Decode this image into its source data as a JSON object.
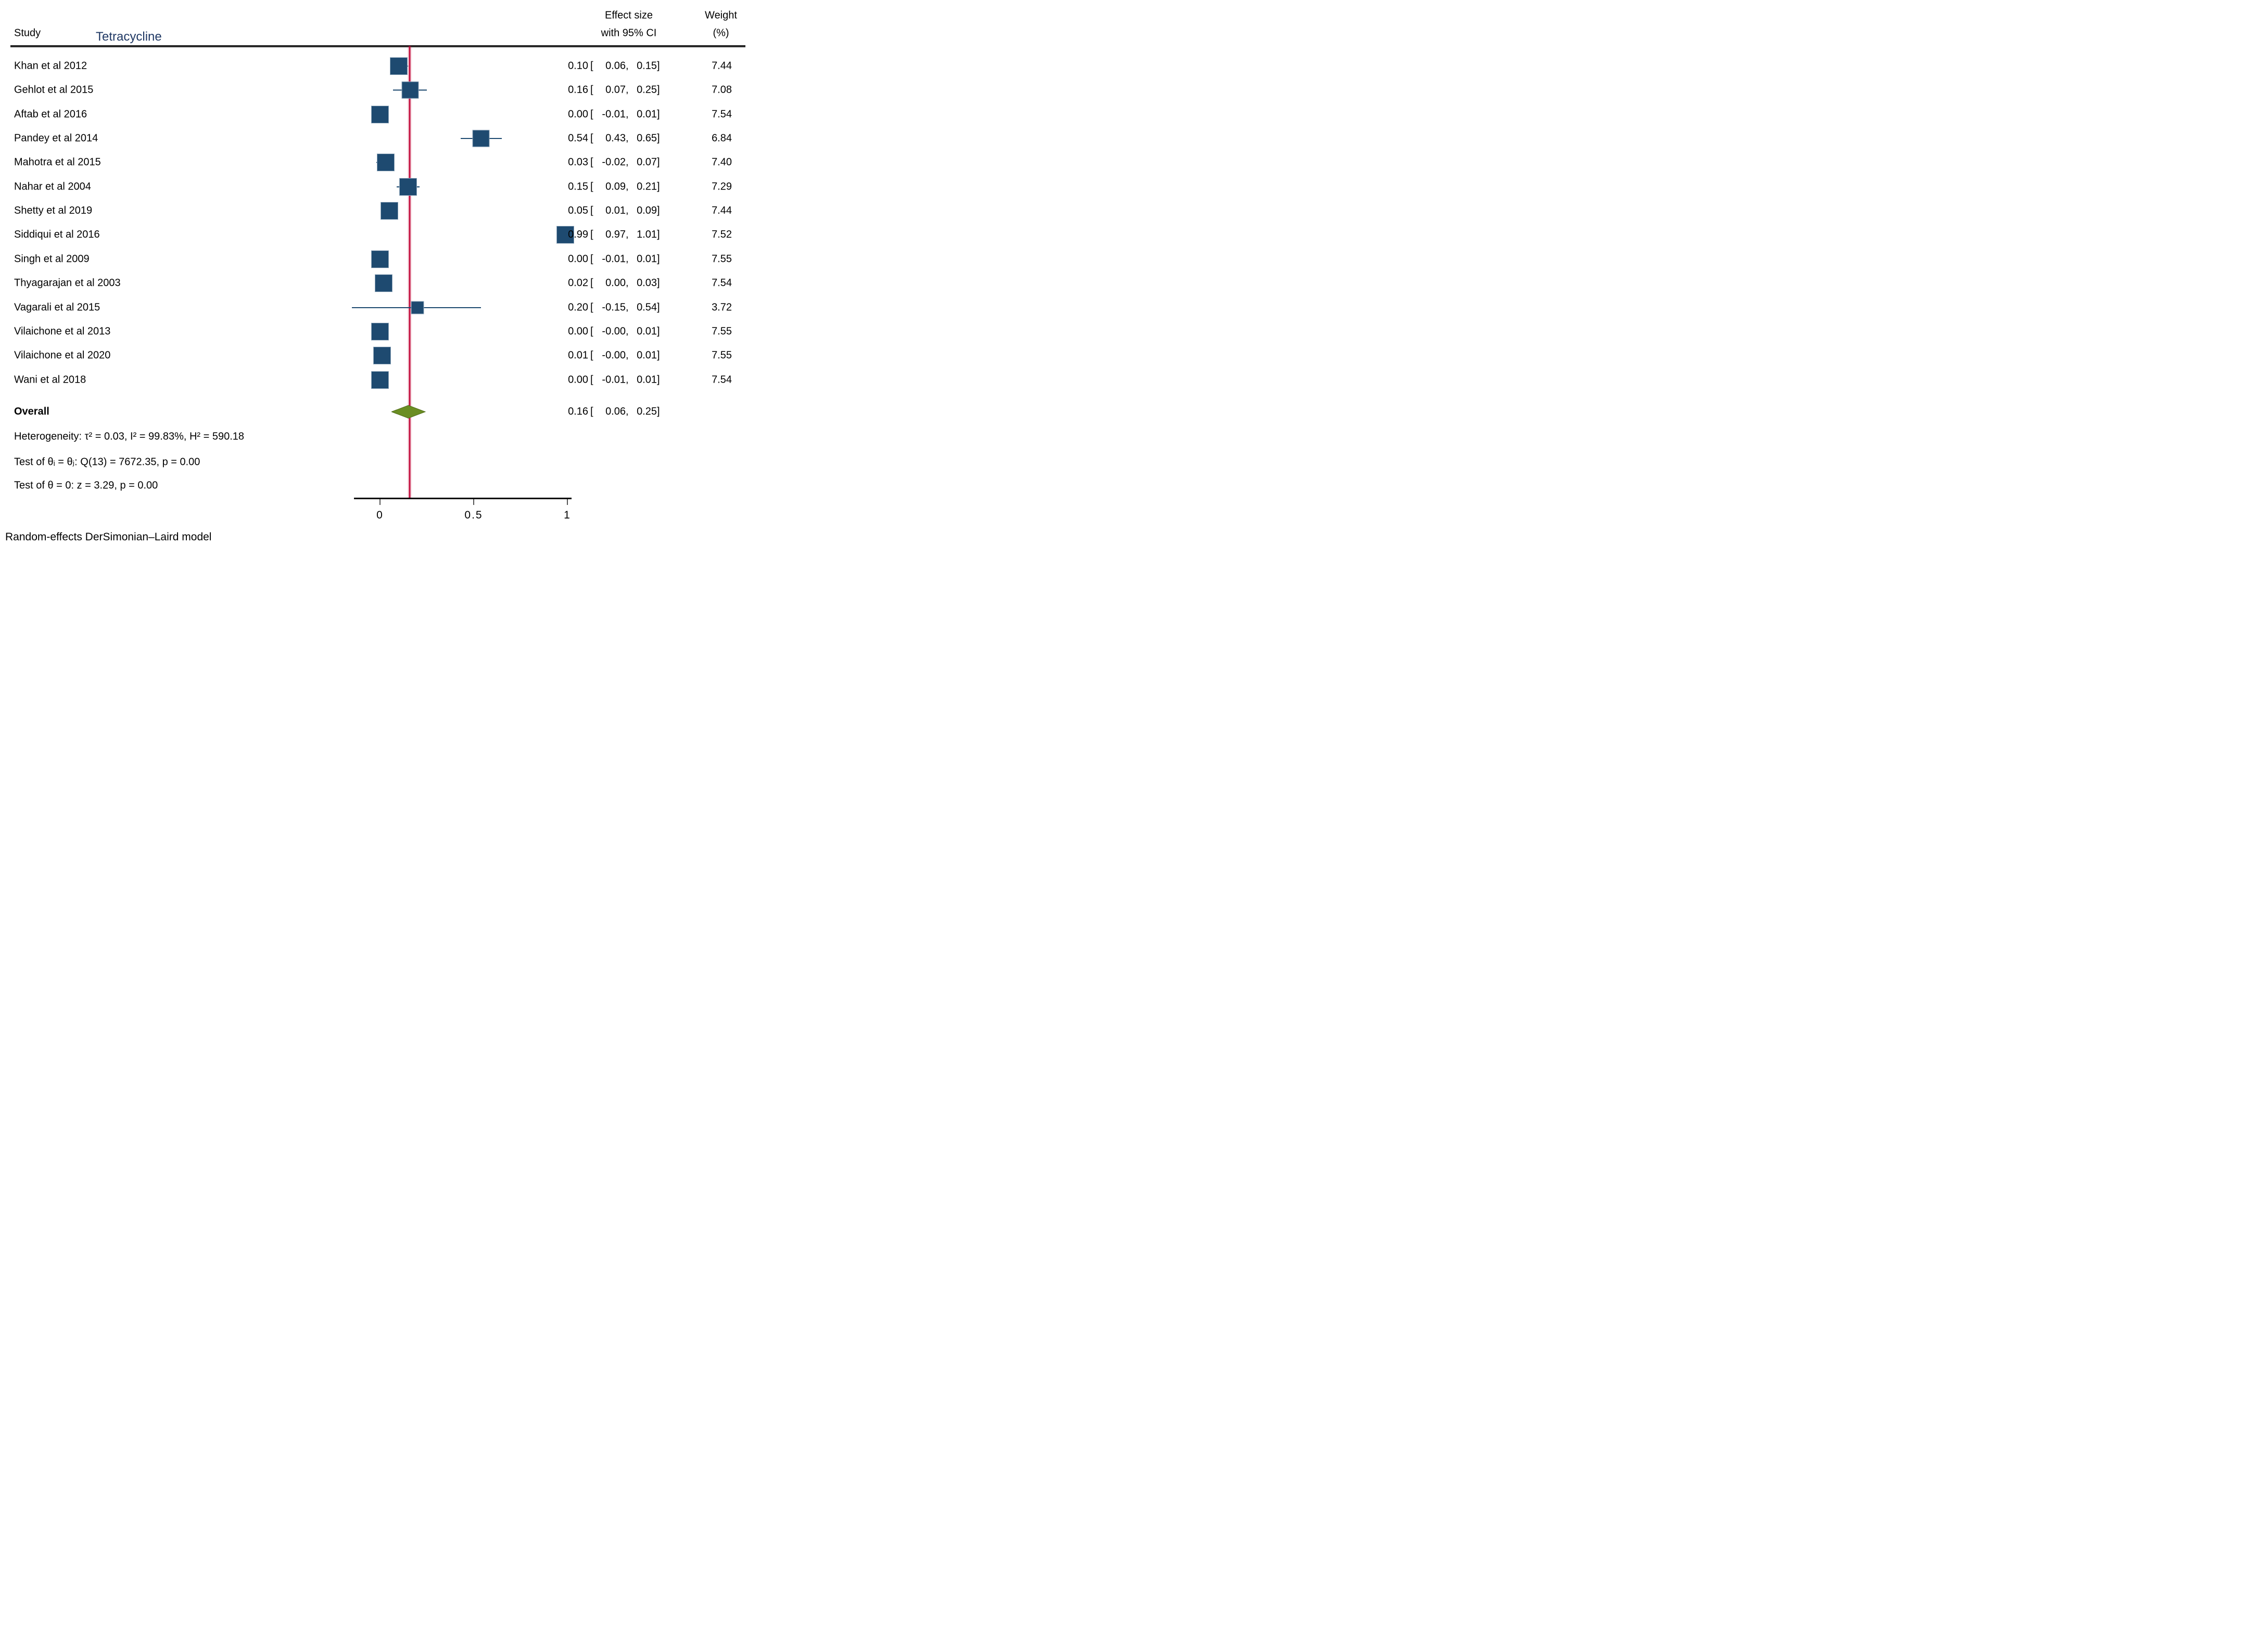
{
  "chart_data": {
    "type": "forest",
    "study_col_header": "Study",
    "subgroup_label": "Tetracycline",
    "effect_col_header_line1": "Effect size",
    "effect_col_header_line2": "with 95% CI",
    "weight_col_header_line1": "Weight",
    "weight_col_header_line2": "(%)",
    "xticks": [
      "0",
      "0.5",
      "1"
    ],
    "xlabel": "",
    "axis_values": [
      0,
      0.5,
      1
    ],
    "vline_value": 0.158,
    "legend_position": "none",
    "grid": false,
    "studies": [
      {
        "label": "Khan et al 2012",
        "es": 0.1,
        "lo": 0.06,
        "hi": 0.15,
        "weight": 7.44,
        "es_t": "0.10",
        "lo_t": "0.06",
        "hi_t": "0.15",
        "w_t": "7.44"
      },
      {
        "label": "Gehlot et al 2015",
        "es": 0.16,
        "lo": 0.07,
        "hi": 0.25,
        "weight": 7.08,
        "es_t": "0.16",
        "lo_t": "0.07",
        "hi_t": "0.25",
        "w_t": "7.08"
      },
      {
        "label": "Aftab et al 2016",
        "es": 0.0,
        "lo": -0.01,
        "hi": 0.01,
        "weight": 7.54,
        "es_t": "0.00",
        "lo_t": "-0.01",
        "hi_t": "0.01",
        "w_t": "7.54"
      },
      {
        "label": "Pandey et al 2014",
        "es": 0.54,
        "lo": 0.43,
        "hi": 0.65,
        "weight": 6.84,
        "es_t": "0.54",
        "lo_t": "0.43",
        "hi_t": "0.65",
        "w_t": "6.84"
      },
      {
        "label": "Mahotra et al 2015",
        "es": 0.03,
        "lo": -0.02,
        "hi": 0.07,
        "weight": 7.4,
        "es_t": "0.03",
        "lo_t": "-0.02",
        "hi_t": "0.07",
        "w_t": "7.40"
      },
      {
        "label": "Nahar et al 2004",
        "es": 0.15,
        "lo": 0.09,
        "hi": 0.21,
        "weight": 7.29,
        "es_t": "0.15",
        "lo_t": "0.09",
        "hi_t": "0.21",
        "w_t": "7.29"
      },
      {
        "label": "Shetty et al 2019",
        "es": 0.05,
        "lo": 0.01,
        "hi": 0.09,
        "weight": 7.44,
        "es_t": "0.05",
        "lo_t": "0.01",
        "hi_t": "0.09",
        "w_t": "7.44"
      },
      {
        "label": "Siddiqui et al 2016",
        "es": 0.99,
        "lo": 0.97,
        "hi": 1.01,
        "weight": 7.52,
        "es_t": "0.99",
        "lo_t": "0.97",
        "hi_t": "1.01",
        "w_t": "7.52"
      },
      {
        "label": "Singh et al 2009",
        "es": 0.0,
        "lo": -0.01,
        "hi": 0.01,
        "weight": 7.55,
        "es_t": "0.00",
        "lo_t": "-0.01",
        "hi_t": "0.01",
        "w_t": "7.55"
      },
      {
        "label": "Thyagarajan et al 2003",
        "es": 0.02,
        "lo": 0.0,
        "hi": 0.03,
        "weight": 7.54,
        "es_t": "0.02",
        "lo_t": "0.00",
        "hi_t": "0.03",
        "w_t": "7.54"
      },
      {
        "label": "Vagarali et al 2015",
        "es": 0.2,
        "lo": -0.15,
        "hi": 0.54,
        "weight": 3.72,
        "es_t": "0.20",
        "lo_t": "-0.15",
        "hi_t": "0.54",
        "w_t": "3.72"
      },
      {
        "label": "Vilaichone et al 2013",
        "es": 0.0,
        "lo": 0.0,
        "hi": 0.01,
        "weight": 7.55,
        "es_t": "0.00",
        "lo_t": "-0.00",
        "hi_t": "0.01",
        "w_t": "7.55"
      },
      {
        "label": "Vilaichone et al 2020",
        "es": 0.01,
        "lo": 0.0,
        "hi": 0.01,
        "weight": 7.55,
        "es_t": "0.01",
        "lo_t": "-0.00",
        "hi_t": "0.01",
        "w_t": "7.55"
      },
      {
        "label": "Wani et al 2018",
        "es": 0.0,
        "lo": -0.01,
        "hi": 0.01,
        "weight": 7.54,
        "es_t": "0.00",
        "lo_t": "-0.01",
        "hi_t": "0.01",
        "w_t": "7.54"
      }
    ],
    "overall": {
      "label": "Overall",
      "es": 0.16,
      "lo": 0.06,
      "hi": 0.25,
      "es_t": "0.16",
      "lo_t": "0.06",
      "hi_t": "0.25"
    },
    "stats_lines": [
      "Heterogeneity: τ² = 0.03, I² = 99.83%, H² = 590.18",
      "Test of θᵢ = θⱼ: Q(13) = 7672.35, p = 0.00",
      "Test of θ = 0: z = 3.29, p = 0.00"
    ],
    "note": "Random-effects DerSimonian–Laird model",
    "colors": {
      "marker": "#1e4a70",
      "marker_halo": "#8fa6ba",
      "diamond_fill": "#6b8e23",
      "diamond_edge": "#4e6b1a",
      "vline": "#c41240",
      "subgroup_text": "#1f3864",
      "axis": "#000000",
      "tick": "#555555"
    }
  }
}
